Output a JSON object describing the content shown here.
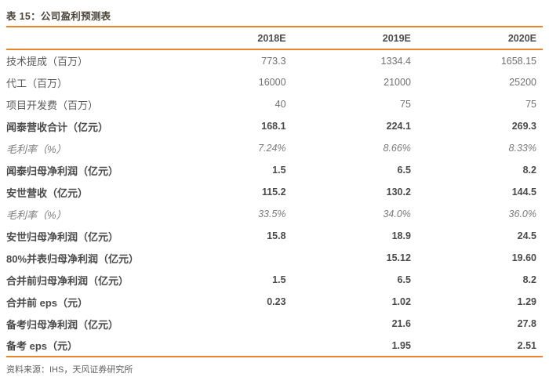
{
  "title": "表 15：公司盈利预测表",
  "source_note": "资料来源：IHS，天风证券研究所",
  "colors": {
    "accent_line": "#e8852d",
    "title_text": "#4c463a",
    "body_text": "#5a5a5a",
    "bold_text": "#4a4a4a"
  },
  "chart_data": {
    "type": "table",
    "title": "表 15：公司盈利预测表",
    "columns": [
      "",
      "2018E",
      "2019E",
      "2020E"
    ],
    "rows": [
      {
        "label": "技术提成（百万）",
        "values": [
          "773.3",
          "1334.4",
          "1658.15"
        ],
        "style": "regular"
      },
      {
        "label": "代工（百万）",
        "values": [
          "16000",
          "21000",
          "25200"
        ],
        "style": "regular"
      },
      {
        "label": "项目开发费（百万）",
        "values": [
          "40",
          "75",
          "75"
        ],
        "style": "regular"
      },
      {
        "label": "闻泰营收合计（亿元）",
        "values": [
          "168.1",
          "224.1",
          "269.3"
        ],
        "style": "bold"
      },
      {
        "label": "毛利率（%）",
        "values": [
          "7.24%",
          "8.66%",
          "8.33%"
        ],
        "style": "italic"
      },
      {
        "label": "闻泰归母净利润（亿元）",
        "values": [
          "1.5",
          "6.5",
          "8.2"
        ],
        "style": "bold"
      },
      {
        "label": "安世营收（亿元）",
        "values": [
          "115.2",
          "130.2",
          "144.5"
        ],
        "style": "bold"
      },
      {
        "label": "毛利率（%）",
        "values": [
          "33.5%",
          "34.0%",
          "36.0%"
        ],
        "style": "italic"
      },
      {
        "label": "安世归母净利润（亿元）",
        "values": [
          "15.8",
          "18.9",
          "24.5"
        ],
        "style": "bold"
      },
      {
        "label": "80%并表归母净利润（亿元）",
        "values": [
          "",
          "15.12",
          "19.60"
        ],
        "style": "bold"
      },
      {
        "label": "合并前归母净利润（亿元）",
        "values": [
          "1.5",
          "6.5",
          "8.2"
        ],
        "style": "bold"
      },
      {
        "label": "合并前 eps（元）",
        "values": [
          "0.23",
          "1.02",
          "1.29"
        ],
        "style": "bold"
      },
      {
        "label": "备考归母净利润（亿元）",
        "values": [
          "",
          "21.6",
          "27.8"
        ],
        "style": "bold"
      },
      {
        "label": "备考 eps（元）",
        "values": [
          "",
          "1.95",
          "2.51"
        ],
        "style": "bold"
      }
    ]
  }
}
